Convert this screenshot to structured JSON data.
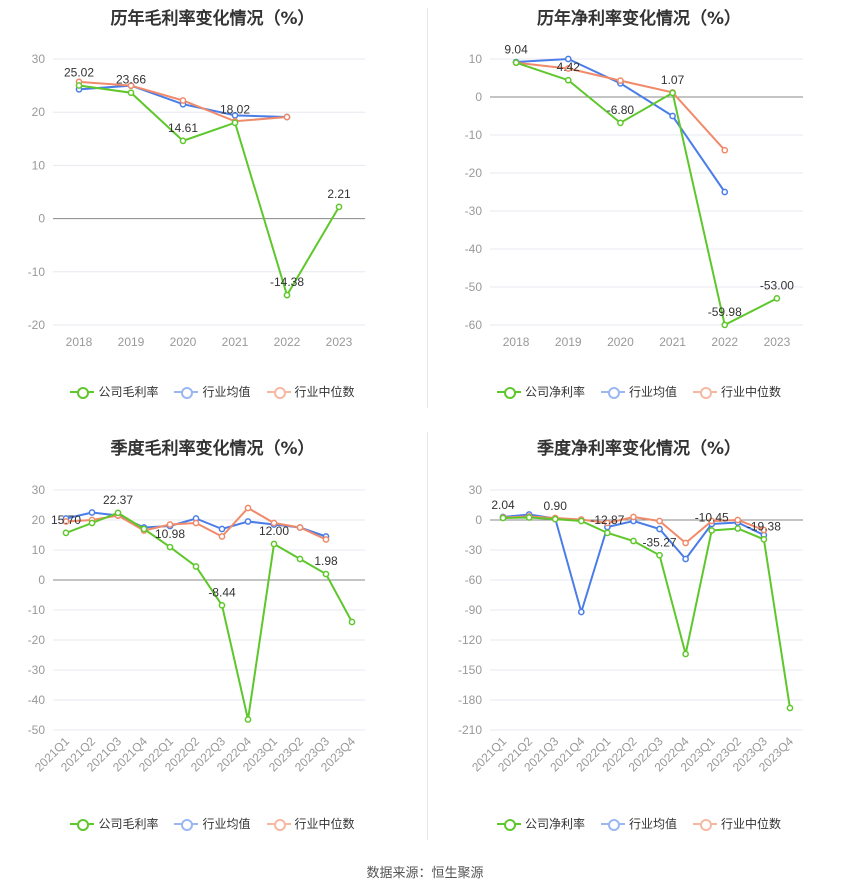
{
  "source": "数据来源：恒生聚源",
  "colors": {
    "company": "#5ec72b",
    "avg": "#4a7de8",
    "median": "#f08a6a",
    "grid": "#e6e8f0",
    "axis": "#888888"
  },
  "chart_data": [
    {
      "type": "line",
      "title": "历年毛利率变化情况（%）",
      "categories": [
        "2018",
        "2019",
        "2020",
        "2021",
        "2022",
        "2023"
      ],
      "ylim": [
        -20,
        30
      ],
      "yticks": [
        -20,
        -10,
        0,
        10,
        20,
        30
      ],
      "legend": [
        "公司毛利率",
        "行业均值",
        "行业中位数"
      ],
      "series": [
        {
          "name": "公司毛利率",
          "role": "company",
          "values": [
            25.02,
            23.66,
            14.61,
            18.02,
            -14.38,
            2.21
          ],
          "labels": [
            "25.02",
            "23.66",
            "14.61",
            "18.02",
            "-14.38",
            "2.21"
          ]
        },
        {
          "name": "行业均值",
          "role": "avg",
          "values": [
            24.3,
            25.0,
            21.5,
            19.4,
            19.1,
            null
          ]
        },
        {
          "name": "行业中位数",
          "role": "median",
          "values": [
            25.7,
            25.0,
            22.2,
            18.3,
            19.1,
            null
          ]
        }
      ]
    },
    {
      "type": "line",
      "title": "历年净利率变化情况（%）",
      "categories": [
        "2018",
        "2019",
        "2020",
        "2021",
        "2022",
        "2023"
      ],
      "ylim": [
        -60,
        10
      ],
      "yticks": [
        -60,
        -50,
        -40,
        -30,
        -20,
        -10,
        0,
        10
      ],
      "legend": [
        "公司净利率",
        "行业均值",
        "行业中位数"
      ],
      "series": [
        {
          "name": "公司净利率",
          "role": "company",
          "values": [
            9.04,
            4.42,
            -6.8,
            1.07,
            -59.98,
            -53.0
          ],
          "labels": [
            "9.04",
            "4.42",
            "-6.80",
            "1.07",
            "-59.98",
            "-53.00"
          ]
        },
        {
          "name": "行业均值",
          "role": "avg",
          "values": [
            9.2,
            10.0,
            3.6,
            -5.0,
            -25.0,
            null
          ]
        },
        {
          "name": "行业中位数",
          "role": "median",
          "values": [
            9.0,
            7.5,
            4.3,
            1.2,
            -14.0,
            null
          ]
        }
      ]
    },
    {
      "type": "line",
      "title": "季度毛利率变化情况（%）",
      "categories": [
        "2021Q1",
        "2021Q2",
        "2021Q3",
        "2021Q4",
        "2022Q1",
        "2022Q2",
        "2022Q3",
        "2022Q4",
        "2023Q1",
        "2023Q2",
        "2023Q3",
        "2023Q4"
      ],
      "ylim": [
        -50,
        30
      ],
      "yticks": [
        -50,
        -40,
        -30,
        -20,
        -10,
        0,
        10,
        20,
        30
      ],
      "legend": [
        "公司毛利率",
        "行业均值",
        "行业中位数"
      ],
      "series": [
        {
          "name": "公司毛利率",
          "role": "company",
          "values": [
            15.7,
            19.0,
            22.37,
            17.0,
            10.98,
            4.5,
            -8.44,
            -46.5,
            12.0,
            7.0,
            1.98,
            -14.0
          ],
          "labels": [
            "15.70",
            null,
            "22.37",
            null,
            "10.98",
            null,
            "-8.44",
            null,
            "12.00",
            null,
            "1.98",
            null
          ]
        },
        {
          "name": "行业均值",
          "role": "avg",
          "values": [
            20.5,
            22.5,
            21.5,
            17.5,
            18.0,
            20.5,
            17.0,
            19.5,
            18.5,
            17.5,
            14.5,
            null
          ]
        },
        {
          "name": "行业中位数",
          "role": "median",
          "values": [
            19.5,
            20.0,
            21.5,
            16.5,
            18.5,
            19.0,
            14.5,
            24.0,
            19.0,
            17.5,
            13.5,
            null
          ]
        }
      ]
    },
    {
      "type": "line",
      "title": "季度净利率变化情况（%）",
      "categories": [
        "2021Q1",
        "2021Q2",
        "2021Q3",
        "2021Q4",
        "2022Q1",
        "2022Q2",
        "2022Q3",
        "2022Q4",
        "2023Q1",
        "2023Q2",
        "2023Q3",
        "2023Q4"
      ],
      "ylim": [
        -210,
        30
      ],
      "yticks": [
        -210,
        -180,
        -150,
        -120,
        -90,
        -60,
        -30,
        0,
        30
      ],
      "legend": [
        "公司净利率",
        "行业均值",
        "行业中位数"
      ],
      "series": [
        {
          "name": "公司净利率",
          "role": "company",
          "values": [
            2.04,
            2.5,
            0.9,
            -1.0,
            -12.87,
            -21.0,
            -35.27,
            -134.0,
            -10.45,
            -8.5,
            -19.38,
            -188.0
          ],
          "labels": [
            "2.04",
            null,
            "0.90",
            null,
            "-12.87",
            null,
            "-35.27",
            null,
            "-10.45",
            null,
            "-19.38",
            null
          ]
        },
        {
          "name": "行业均值",
          "role": "avg",
          "values": [
            3.0,
            5.5,
            1.5,
            -92.0,
            -7.0,
            -1.0,
            -9.0,
            -39.0,
            -4.0,
            -2.5,
            -15.0,
            null
          ]
        },
        {
          "name": "行业中位数",
          "role": "median",
          "values": [
            2.5,
            3.5,
            2.0,
            0.5,
            -3.0,
            3.0,
            -1.0,
            -23.0,
            -1.0,
            0.0,
            -10.0,
            null
          ]
        }
      ]
    }
  ]
}
